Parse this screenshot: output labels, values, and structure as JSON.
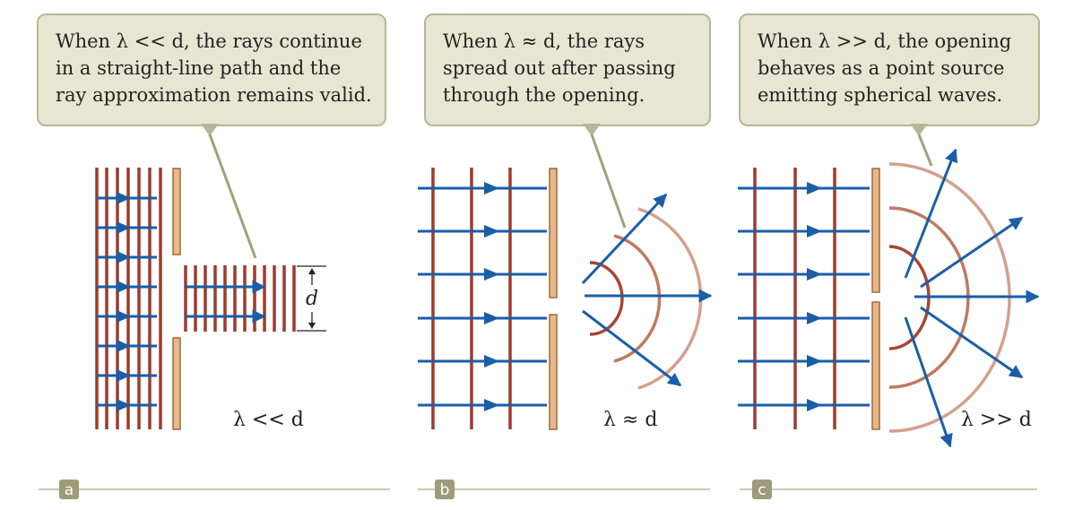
{
  "colors": {
    "wavefront": "#9b3c2e",
    "ray": "#1a5ea8",
    "barrier_fill": "#e7b98a",
    "barrier_stroke": "#9b6a3a",
    "callout_fill": "#e6e6d2",
    "callout_stroke": "#b7b797",
    "pointer": "#a1a17a",
    "rule": "#c9c9ae",
    "badge": "#9c9c7a",
    "arc_inner": "#a94435",
    "arc_mid": "#c07a62",
    "arc_outer": "#d3a08e"
  },
  "panels": [
    {
      "id": "a",
      "badge": "a",
      "callout_lines": [
        "When λ << d, the rays continue",
        "in a straight-line path and the",
        "ray approximation remains valid."
      ],
      "condition": "λ << d",
      "dimension_label": "d"
    },
    {
      "id": "b",
      "badge": "b",
      "callout_lines": [
        "When λ ≈ d, the rays",
        "spread out after passing",
        "through the opening."
      ],
      "condition": "λ ≈ d"
    },
    {
      "id": "c",
      "badge": "c",
      "callout_lines": [
        "When λ >> d, the opening",
        "behaves as a point source",
        "emitting spherical waves."
      ],
      "condition": "λ >> d"
    }
  ]
}
